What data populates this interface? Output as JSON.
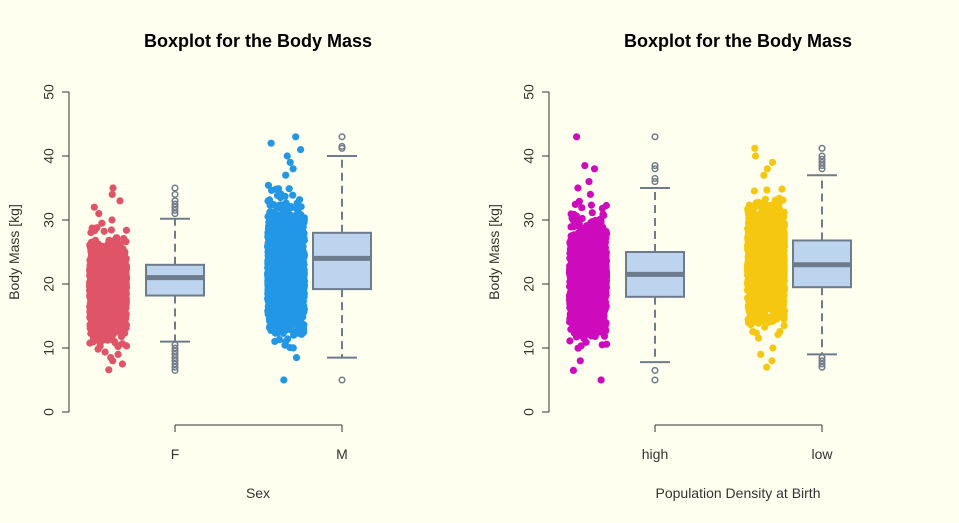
{
  "colors": {
    "background": "#fffff0",
    "box_fill": "#bcd4ee",
    "box_border": "#6e7b8b",
    "axis": "#333333"
  },
  "chart_data": [
    {
      "type": "boxplot",
      "title": "Boxplot for the Body Mass",
      "xlabel": "Sex",
      "ylabel": "Body Mass [kg]",
      "ylim": [
        0,
        50
      ],
      "yticks": [
        0,
        10,
        20,
        30,
        40,
        50
      ],
      "categories": [
        "F",
        "M"
      ],
      "jitter_colors": [
        "#df5467",
        "#2297e6"
      ],
      "groups": [
        {
          "category": "F",
          "jitter_min": 9,
          "jitter_max": 29,
          "jitter_outliers": [
            6.6,
            7.5,
            8,
            8.5,
            9,
            29.5,
            30,
            31,
            32,
            33,
            34,
            35
          ],
          "whisker_low": 11,
          "q1": 18.2,
          "median": 21,
          "q3": 23,
          "whisker_high": 30.2,
          "outliers": [
            6.5,
            7,
            7.5,
            8,
            8.5,
            9,
            9.5,
            10,
            10.5,
            31,
            31.5,
            32,
            32.5,
            33,
            34,
            35
          ]
        },
        {
          "category": "M",
          "jitter_min": 9,
          "jitter_max": 36,
          "jitter_outliers": [
            5,
            8.5,
            37,
            38,
            39,
            40,
            41,
            42,
            43
          ],
          "whisker_low": 8.5,
          "q1": 19.2,
          "median": 24,
          "q3": 28,
          "whisker_high": 40,
          "outliers": [
            5,
            41.2,
            41.5,
            43
          ]
        }
      ]
    },
    {
      "type": "boxplot",
      "title": "Boxplot for the Body Mass",
      "xlabel": "Population Density at Birth",
      "ylabel": "Body Mass [kg]",
      "ylim": [
        0,
        50
      ],
      "yticks": [
        0,
        10,
        20,
        30,
        40,
        50
      ],
      "categories": [
        "high",
        "low"
      ],
      "jitter_colors": [
        "#cd0bbc",
        "#f5c710"
      ],
      "groups": [
        {
          "category": "high",
          "jitter_min": 9,
          "jitter_max": 33,
          "jitter_outliers": [
            5,
            6.5,
            8,
            34,
            35,
            36,
            38,
            38.5,
            43
          ],
          "whisker_low": 7.8,
          "q1": 18,
          "median": 21.5,
          "q3": 25,
          "whisker_high": 35,
          "outliers": [
            5,
            6.5,
            36,
            36.5,
            38,
            38.5,
            43
          ]
        },
        {
          "category": "low",
          "jitter_min": 11,
          "jitter_max": 36,
          "jitter_outliers": [
            7,
            8,
            9,
            10,
            37,
            38,
            39,
            40,
            41.2
          ],
          "whisker_low": 9,
          "q1": 19.5,
          "median": 23,
          "q3": 26.8,
          "whisker_high": 37,
          "outliers": [
            7,
            7.5,
            8,
            8.5,
            38,
            38.5,
            39,
            39.5,
            40,
            41.2
          ]
        }
      ]
    }
  ]
}
